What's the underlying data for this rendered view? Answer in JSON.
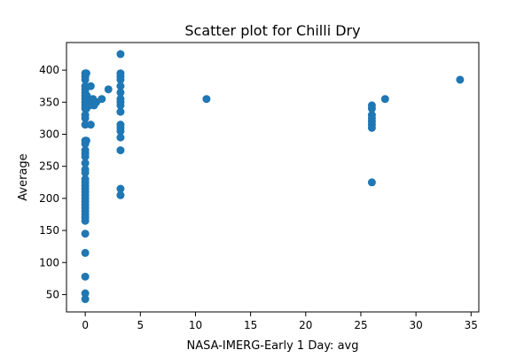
{
  "chart_data": {
    "type": "scatter",
    "title": "Scatter plot for Chilli Dry",
    "xlabel": "NASA-IMERG-Early 1 Day: avg",
    "ylabel": "Average",
    "xlim": [
      -1.7,
      35.7
    ],
    "ylim": [
      23,
      443
    ],
    "xticks": [
      0,
      5,
      10,
      15,
      20,
      25,
      30,
      35
    ],
    "yticks": [
      50,
      100,
      150,
      200,
      250,
      300,
      350,
      400
    ],
    "grid": false,
    "marker_color": "#1f77b4",
    "series": [
      {
        "points": [
          [
            0,
            395
          ],
          [
            0,
            390
          ],
          [
            0,
            385
          ],
          [
            0,
            375
          ],
          [
            0,
            370
          ],
          [
            0,
            365
          ],
          [
            0,
            360
          ],
          [
            0,
            355
          ],
          [
            0,
            350
          ],
          [
            0,
            345
          ],
          [
            0,
            340
          ],
          [
            0,
            330
          ],
          [
            0,
            325
          ],
          [
            0,
            315
          ],
          [
            0,
            290
          ],
          [
            0,
            285
          ],
          [
            0,
            275
          ],
          [
            0,
            270
          ],
          [
            0,
            265
          ],
          [
            0,
            255
          ],
          [
            0,
            245
          ],
          [
            0,
            240
          ],
          [
            0,
            230
          ],
          [
            0,
            225
          ],
          [
            0,
            220
          ],
          [
            0,
            215
          ],
          [
            0,
            210
          ],
          [
            0,
            205
          ],
          [
            0,
            200
          ],
          [
            0,
            195
          ],
          [
            0,
            190
          ],
          [
            0,
            185
          ],
          [
            0,
            180
          ],
          [
            0,
            175
          ],
          [
            0,
            170
          ],
          [
            0,
            165
          ],
          [
            0,
            145
          ],
          [
            0,
            115
          ],
          [
            0,
            78
          ],
          [
            0,
            52
          ],
          [
            0,
            43
          ],
          [
            0.1,
            395
          ],
          [
            0.15,
            360
          ],
          [
            0.1,
            340
          ],
          [
            0.1,
            290
          ],
          [
            0.3,
            350
          ],
          [
            0.4,
            345
          ],
          [
            0.5,
            375
          ],
          [
            0.5,
            315
          ],
          [
            0.7,
            355
          ],
          [
            0.8,
            345
          ],
          [
            1.0,
            350
          ],
          [
            1.5,
            355
          ],
          [
            2.1,
            370
          ],
          [
            3.2,
            425
          ],
          [
            3.2,
            395
          ],
          [
            3.2,
            390
          ],
          [
            3.2,
            385
          ],
          [
            3.2,
            375
          ],
          [
            3.2,
            365
          ],
          [
            3.2,
            355
          ],
          [
            3.2,
            350
          ],
          [
            3.2,
            345
          ],
          [
            3.2,
            335
          ],
          [
            3.2,
            315
          ],
          [
            3.2,
            310
          ],
          [
            3.2,
            305
          ],
          [
            3.2,
            295
          ],
          [
            3.2,
            275
          ],
          [
            3.2,
            215
          ],
          [
            3.2,
            205
          ],
          [
            11.0,
            355
          ],
          [
            26.0,
            345
          ],
          [
            26.0,
            340
          ],
          [
            26.0,
            330
          ],
          [
            26.0,
            325
          ],
          [
            26.0,
            320
          ],
          [
            26.0,
            315
          ],
          [
            26.0,
            310
          ],
          [
            26.0,
            225
          ],
          [
            27.2,
            355
          ],
          [
            34.0,
            385
          ]
        ]
      }
    ]
  }
}
